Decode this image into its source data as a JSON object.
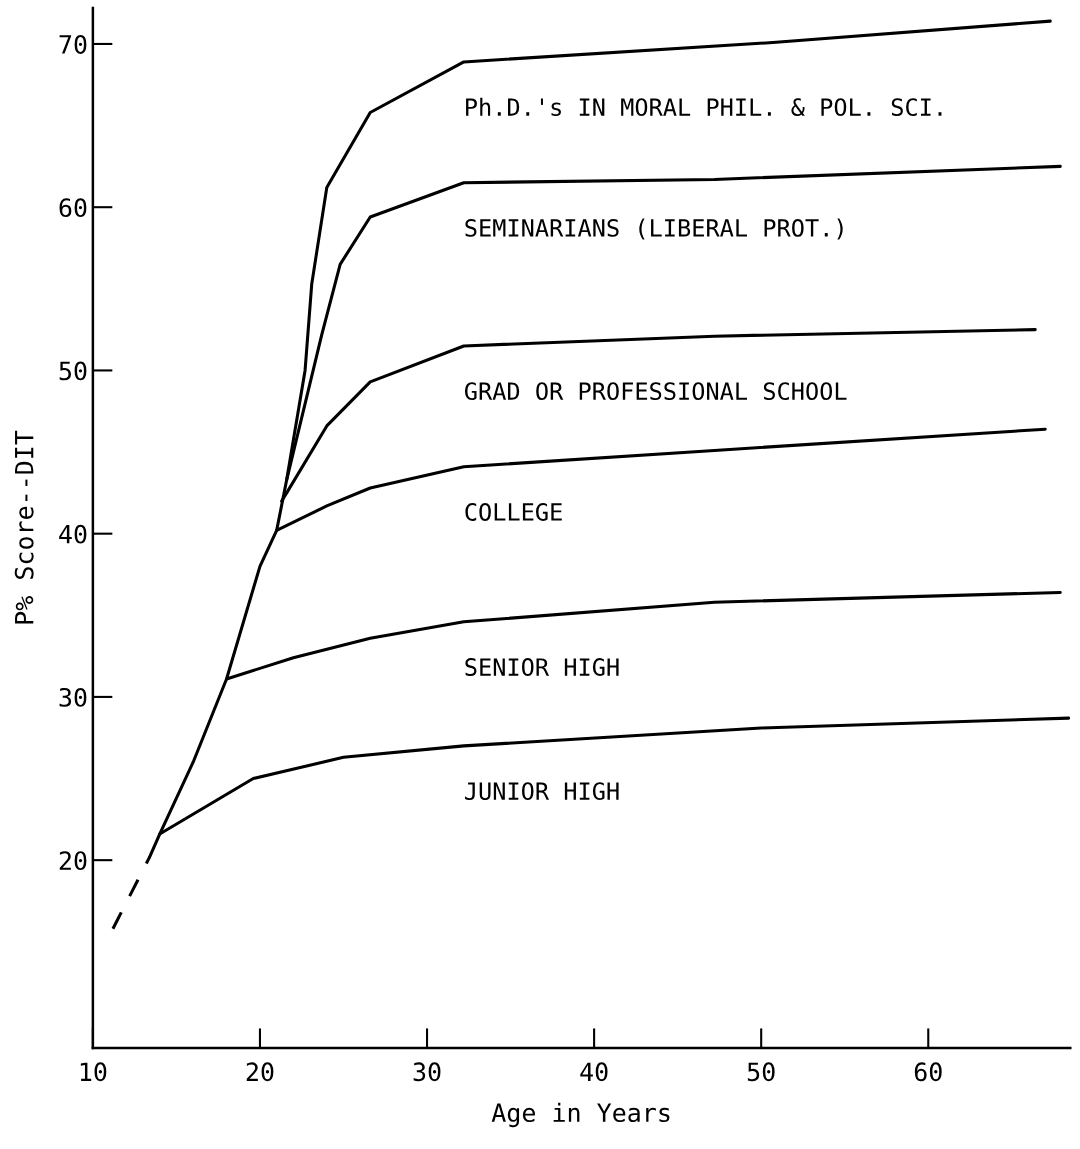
{
  "chart_data": {
    "type": "line",
    "xlabel": "Age in Years",
    "ylabel": "P% Score--DIT",
    "xlim": [
      10,
      68.5
    ],
    "ylim": [
      8.5,
      72.2
    ],
    "xticks": [
      10,
      20,
      30,
      40,
      50,
      60
    ],
    "yticks": [
      20,
      30,
      40,
      50,
      60,
      70
    ],
    "grid": false,
    "marker": "none",
    "series": [
      {
        "color": "#000000",
        "line_style": "dashed",
        "x": [
          11.2,
          13.4
        ],
        "values": [
          15.8,
          20.2
        ]
      },
      {
        "name": "Ph.D.'s IN MORAL PHIL. & POL. SCI.",
        "color": "#000000",
        "x": [
          13.4,
          14.0,
          16.0,
          18.0,
          20.0,
          21.0,
          21.6,
          22.7,
          23.1,
          24.0,
          26.6,
          32.2,
          50.9,
          67.3
        ],
        "values": [
          20.2,
          21.6,
          26.0,
          31.1,
          38.0,
          40.2,
          43.3,
          50.0,
          55.3,
          61.2,
          65.8,
          68.9,
          70.1,
          71.4
        ]
      },
      {
        "name": "SEMINARIANS (LIBERAL PROT.)",
        "color": "#000000",
        "x": [
          21.6,
          23.7,
          24.8,
          26.6,
          32.2,
          47.2,
          67.9
        ],
        "values": [
          43.3,
          52.2,
          56.5,
          59.4,
          61.5,
          61.7,
          62.5
        ]
      },
      {
        "name": "GRAD OR PROFESSIONAL SCHOOL",
        "color": "#000000",
        "x": [
          21.3,
          21.6,
          24.0,
          26.6,
          32.2,
          47.2,
          66.4
        ],
        "values": [
          42.0,
          42.5,
          46.6,
          49.3,
          51.5,
          52.1,
          52.5
        ]
      },
      {
        "name": "COLLEGE",
        "color": "#000000",
        "x": [
          21.0,
          24.0,
          26.6,
          32.2,
          47.2,
          67.0
        ],
        "values": [
          40.2,
          41.7,
          42.8,
          44.1,
          45.1,
          46.4
        ]
      },
      {
        "name": "SENIOR HIGH",
        "color": "#000000",
        "x": [
          18.0,
          22.0,
          26.6,
          32.2,
          47.2,
          67.9
        ],
        "values": [
          31.1,
          32.4,
          33.6,
          34.6,
          35.8,
          36.4
        ]
      },
      {
        "name": "JUNIOR HIGH",
        "color": "#000000",
        "x": [
          14.0,
          19.6,
          25.0,
          32.2,
          50.0,
          68.4
        ],
        "values": [
          21.6,
          25.0,
          26.3,
          27.0,
          28.1,
          28.7
        ]
      }
    ]
  }
}
